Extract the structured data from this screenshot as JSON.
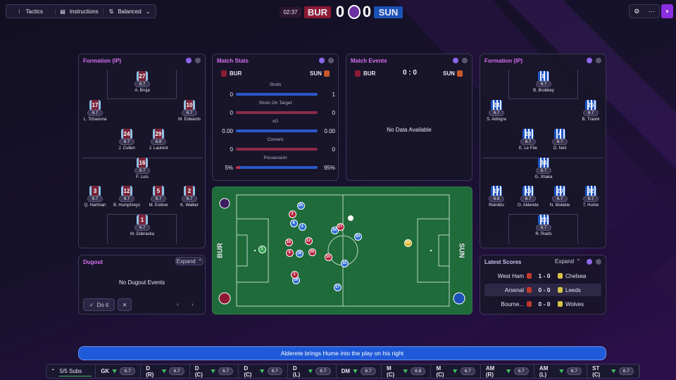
{
  "top_bar": {
    "tactics": "Tactics",
    "instructions": "Instructions",
    "mentality": "Balanced"
  },
  "scoreboard": {
    "clock": "02:37",
    "home": "BUR",
    "home_score": 0,
    "away_score": 0,
    "away": "SUN"
  },
  "formation_home": {
    "title": "Formation (IP)",
    "players": [
      {
        "number": 27,
        "rating": 6.7,
        "name": "A. Broja"
      },
      {
        "number": 17,
        "rating": 6.7,
        "name": "L. Tchaouna"
      },
      {
        "number": 10,
        "rating": 6.7,
        "name": "M. Edwards"
      },
      {
        "number": 24,
        "rating": 6.7,
        "name": "J. Cullen"
      },
      {
        "number": 29,
        "rating": 6.8,
        "name": "J. Laurent"
      },
      {
        "number": 16,
        "rating": 6.7,
        "name": "F. Luís"
      },
      {
        "number": 3,
        "rating": 6.7,
        "name": "Q. Hartman"
      },
      {
        "number": 12,
        "rating": 6.7,
        "name": "B. Humphreys"
      },
      {
        "number": 5,
        "rating": 6.7,
        "name": "M. Estève"
      },
      {
        "number": 2,
        "rating": 6.7,
        "name": "K. Walker"
      },
      {
        "number": 1,
        "rating": 6.7,
        "name": "M. Dúbravka"
      }
    ]
  },
  "formation_away": {
    "title": "Formation (IP)",
    "players": [
      {
        "number": 8,
        "rating": 6.7,
        "name": "B. Brobbey"
      },
      {
        "number": 24,
        "rating": 6.7,
        "name": "S. Adingra"
      },
      {
        "number": 25,
        "rating": 6.7,
        "name": "B. Traoré"
      },
      {
        "number": 28,
        "rating": 6.7,
        "name": "E. Le Fée"
      },
      {
        "number": 4,
        "rating": 6.7,
        "name": "D. Neil"
      },
      {
        "number": 34,
        "rating": 6.7,
        "name": "G. Xhaka"
      },
      {
        "number": 17,
        "rating": 6.8,
        "name": "Reinildo"
      },
      {
        "number": 15,
        "rating": 6.7,
        "name": "O. Alderete"
      },
      {
        "number": 20,
        "rating": 6.7,
        "name": "N. Mukiele"
      },
      {
        "number": 32,
        "rating": 6.7,
        "name": "T. Hume"
      },
      {
        "number": 22,
        "rating": 6.7,
        "name": "R. Roefs"
      }
    ]
  },
  "match_stats": {
    "title": "Match Stats",
    "home": "BUR",
    "away": "SUN",
    "labels": [
      "Shots",
      "Shots On Target",
      "xG",
      "Corners",
      "Possession"
    ],
    "home_values": [
      0,
      0,
      0,
      0,
      5
    ],
    "home_value_labels": [
      "0",
      "0",
      "0.00",
      "0",
      "5%"
    ],
    "away_values": [
      1,
      0,
      0,
      0,
      95
    ],
    "away_value_labels": [
      "1",
      "0",
      "0.00",
      "0",
      "95%"
    ]
  },
  "match_events": {
    "title": "Match Events",
    "home": "BUR",
    "score": "0 : 0",
    "away": "SUN",
    "empty": "No Data Available"
  },
  "pitch": {
    "home": "BUR",
    "away": "SUN",
    "markers": [
      {
        "number": 26,
        "color": "#2f6fd6"
      },
      {
        "number": 8,
        "color": "#2f6fd6"
      },
      {
        "number": 4,
        "color": "#2f6fd6"
      },
      {
        "number": 34,
        "color": "#2f6fd6"
      },
      {
        "number": 20,
        "color": "#2f6fd6"
      },
      {
        "number": 28,
        "color": "#2f6fd6"
      },
      {
        "number": 15,
        "color": "#2f6fd6"
      },
      {
        "number": 24,
        "color": "#2f6fd6"
      },
      {
        "number": 17,
        "color": "#2f6fd6"
      },
      {
        "number": 3,
        "color": "#b3223c"
      },
      {
        "number": 27,
        "color": "#b3223c"
      },
      {
        "number": 12,
        "color": "#b3223c"
      },
      {
        "number": 16,
        "color": "#b3223c"
      },
      {
        "number": 9,
        "color": "#b3223c"
      },
      {
        "number": 29,
        "color": "#b3223c"
      },
      {
        "number": 10,
        "color": "#b3223c"
      },
      {
        "number": 2,
        "color": "#b3223c"
      },
      {
        "number": 1,
        "color": "#2e9e4f"
      },
      {
        "number": 22,
        "color": "#e0b21f"
      }
    ]
  },
  "dugout": {
    "title": "Dugout",
    "expand": "Expand",
    "empty": "No Dugout Events",
    "action": "Do it"
  },
  "latest_scores": {
    "title": "Latest Scores",
    "expand": "Expand",
    "rows": [
      {
        "home": "West Ham",
        "score": "1 - 0",
        "away": "Chelsea"
      },
      {
        "home": "Arsenal",
        "score": "0 - 0",
        "away": "Leeds"
      },
      {
        "home": "Bourne...",
        "score": "0 - 0",
        "away": "Wolves"
      }
    ]
  },
  "commentary": "Alderete brings Hume into the play on his right",
  "bottom_bar": {
    "subs": "5/5 Subs",
    "positions": [
      {
        "position": "GK",
        "rating": 6.7
      },
      {
        "position": "D (R)",
        "rating": 6.7
      },
      {
        "position": "D (C)",
        "rating": 6.7
      },
      {
        "position": "D (C)",
        "rating": 6.7
      },
      {
        "position": "D (L)",
        "rating": 6.7
      },
      {
        "position": "DM",
        "rating": 6.7
      },
      {
        "position": "M (C)",
        "rating": 6.8
      },
      {
        "position": "M (C)",
        "rating": 6.7
      },
      {
        "position": "AM (R)",
        "rating": 6.7
      },
      {
        "position": "AM (L)",
        "rating": 6.7
      },
      {
        "position": "ST (C)",
        "rating": 6.7
      }
    ]
  }
}
